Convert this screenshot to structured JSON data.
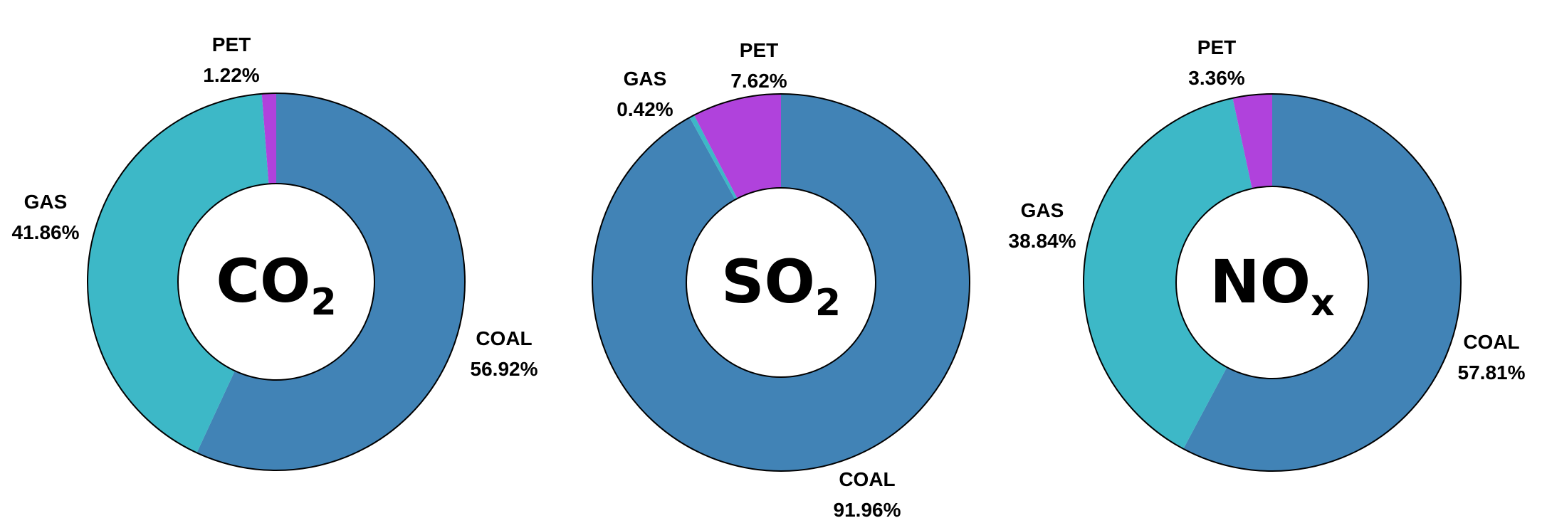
{
  "chart_data": [
    {
      "type": "pie",
      "center_label": "CO",
      "center_subscript": "2",
      "slices": [
        {
          "name": "COAL",
          "value": 56.92,
          "label": "56.92%"
        },
        {
          "name": "GAS",
          "value": 41.86,
          "label": "41.86%"
        },
        {
          "name": "PET",
          "value": 1.22,
          "label": "1.22%"
        }
      ]
    },
    {
      "type": "pie",
      "center_label": "SO",
      "center_subscript": "2",
      "slices": [
        {
          "name": "COAL",
          "value": 91.96,
          "label": "91.96%"
        },
        {
          "name": "GAS",
          "value": 0.42,
          "label": "0.42%"
        },
        {
          "name": "PET",
          "value": 7.62,
          "label": "7.62%"
        }
      ]
    },
    {
      "type": "pie",
      "center_label": "NO",
      "center_subscript": "x",
      "slices": [
        {
          "name": "COAL",
          "value": 57.81,
          "label": "57.81%"
        },
        {
          "name": "GAS",
          "value": 38.84,
          "label": "38.84%"
        },
        {
          "name": "PET",
          "value": 3.36,
          "label": "3.36%"
        }
      ]
    }
  ],
  "colors": {
    "COAL": "#4183b6",
    "GAS": "#3db8c7",
    "PET": "#b042dc"
  }
}
